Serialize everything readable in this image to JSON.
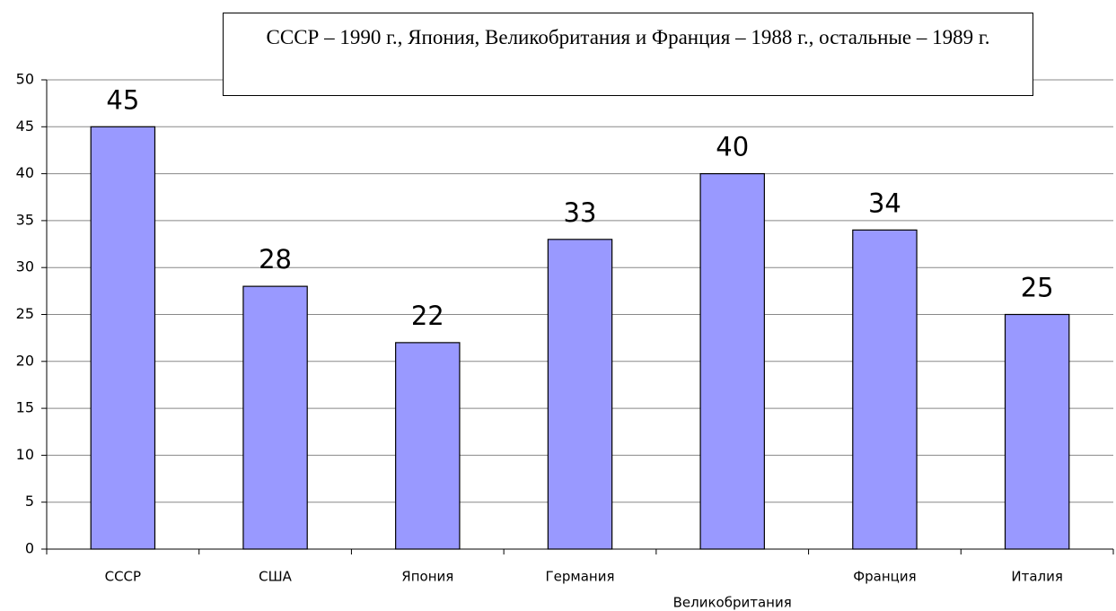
{
  "chart_data": {
    "type": "bar",
    "annotation": "СССР – 1990 г., Япония, Великобритания и Франция – 1988 г., остальные – 1989 г.",
    "categories": [
      "СССР",
      "США",
      "Япония",
      "Германия",
      "Великобритания",
      "Франция",
      "Италия"
    ],
    "values": [
      45,
      28,
      22,
      33,
      40,
      34,
      25
    ],
    "color": "#9999ff",
    "ylim": [
      0,
      50
    ],
    "yticks": [
      0,
      5,
      10,
      15,
      20,
      25,
      30,
      35,
      40,
      45,
      50
    ],
    "grid": true
  }
}
